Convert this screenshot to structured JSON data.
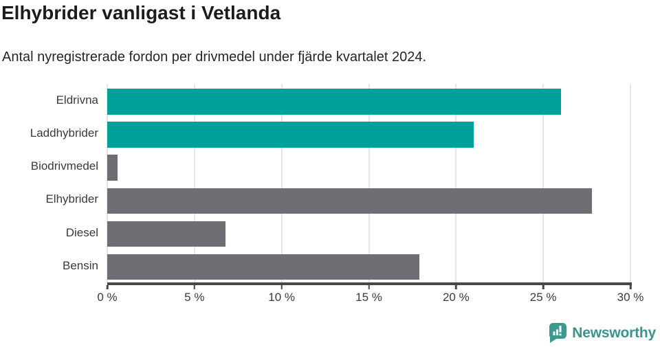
{
  "header": {
    "title": "Elhybrider vanligast i Vetlanda",
    "subtitle": "Antal nyregistrerade fordon per drivmedel under fjärde kvartalet 2024."
  },
  "chart_data": {
    "type": "bar",
    "orientation": "horizontal",
    "title": "Elhybrider vanligast i Vetlanda",
    "subtitle": "Antal nyregistrerade fordon per drivmedel under fjärde kvartalet 2024.",
    "categories": [
      "Eldrivna",
      "Laddhybrider",
      "Biodrivmedel",
      "Elhybrider",
      "Diesel",
      "Bensin"
    ],
    "values": [
      26.0,
      21.0,
      0.6,
      27.8,
      6.8,
      17.9
    ],
    "unit": "%",
    "bar_colors": [
      "#00a09a",
      "#00a09a",
      "#6e6e74",
      "#6e6e74",
      "#6e6e74",
      "#6e6e74"
    ],
    "xlim": [
      0,
      30
    ],
    "x_tick_step": 5,
    "x_tick_labels": [
      "0 %",
      "5 %",
      "10 %",
      "15 %",
      "20 %",
      "25 %",
      "30 %"
    ],
    "grid": true,
    "legend": false
  },
  "branding": {
    "logo_text": "Newsworthy"
  },
  "colors": {
    "teal_bar": "#00a09a",
    "gray_bar": "#6e6e74",
    "gridline": "#e5e5e5",
    "axis": "#474747",
    "logo_teal": "#3b948c",
    "title_text": "#1c1c1c",
    "label_text": "#3a3a3a"
  }
}
